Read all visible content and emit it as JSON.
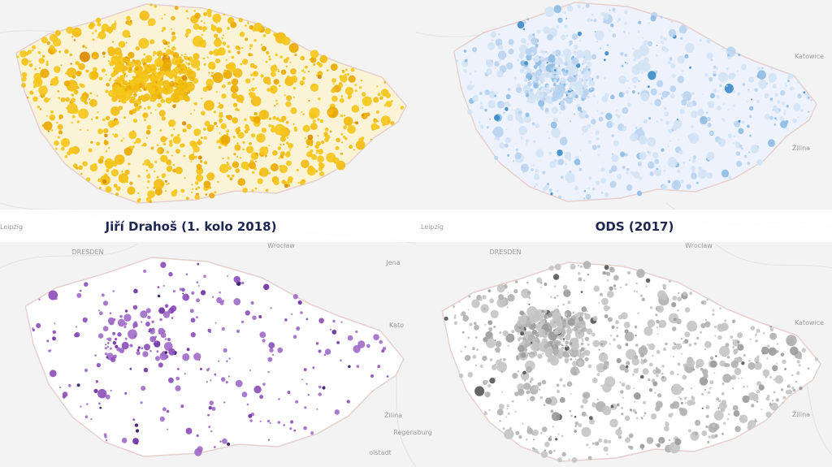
{
  "captions": [
    "Jiří Drahoš (1. kolo 2018)",
    "ODS (2017)"
  ],
  "places": [
    "Leipzig",
    "Leipzig",
    "DRESDEN",
    "Wrocław",
    "Jena",
    "DRESDEN",
    "Wrocław",
    "Katowice",
    "Katowice",
    "Kato",
    "Žilina",
    "Žilina",
    "Žilina",
    "Regensburg",
    "olstadt"
  ]
}
